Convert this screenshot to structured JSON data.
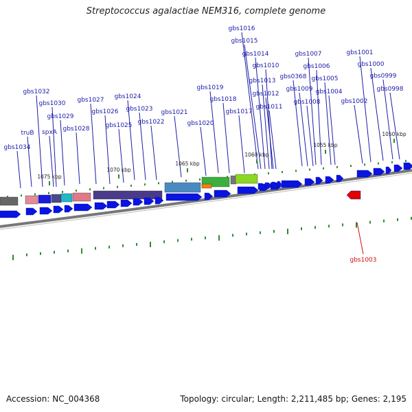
{
  "title": "Streptococcus agalactiae NEM316, complete genome",
  "footer": {
    "accession": "Accession: NC_004368",
    "summary": "Topology: circular; Length: 2,211,485 bp; Genes: 2,195"
  },
  "colors": {
    "gene_forward": "#0a14e0",
    "gene_highlight": "#e00000",
    "label_blue": "#1a1aa8",
    "label_red": "#cc1010",
    "tick_green": "#2e8b2e",
    "backbone": "#777777"
  },
  "kbp_labels": [
    "1050 kbp",
    "1055 kbp",
    "1060 kbp",
    "1065 kbp",
    "1070 kbp",
    "1075 kbp"
  ],
  "gene_labels": [
    "gbs1016",
    "gbs1015",
    "gbs1014",
    "gbs1007",
    "gbs1001",
    "gbs1010",
    "gbs1006",
    "gbs1000",
    "gbs0368",
    "gbs1013",
    "gbs1005",
    "gbs0999",
    "gbs1032",
    "gbs1019",
    "gbs1009",
    "gbs0998",
    "gbs1012",
    "gbs1004",
    "gbs1024",
    "gbs1027",
    "gbs1018",
    "gbs1008",
    "gbs1002",
    "gbs1030",
    "gbs1023",
    "gbs1011",
    "gbs1026",
    "gbs1029",
    "gbs1017",
    "gbs1021",
    "gbs1022",
    "gbs1025",
    "gbs1028",
    "gbs1020",
    "truB",
    "spxA",
    "gbs1034"
  ],
  "highlight_label": "gbs1003"
}
